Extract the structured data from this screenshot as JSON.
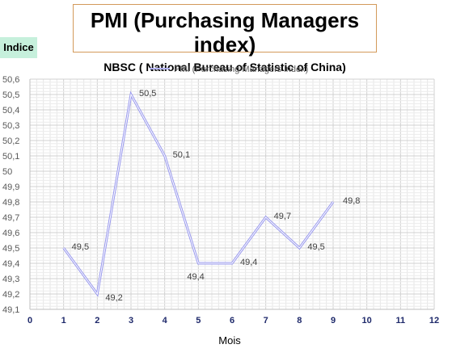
{
  "chart_data": {
    "type": "line",
    "title": "PMI (Purchasing Managers index)",
    "subtitle": "NBSC ( National Bureau of Statistic of China)",
    "ylabel": "Indice",
    "xlabel": "Mois",
    "xlim": [
      0,
      12
    ],
    "ylim": [
      49.1,
      50.6
    ],
    "x_ticks": [
      "0",
      "1",
      "2",
      "3",
      "4",
      "5",
      "6",
      "7",
      "8",
      "9",
      "10",
      "11",
      "12"
    ],
    "y_ticks": [
      "49,1",
      "49,2",
      "49,3",
      "49,4",
      "49,5",
      "49,6",
      "49,7",
      "49,8",
      "49,9",
      "50",
      "50,1",
      "50,2",
      "50,3",
      "50,4",
      "50,5",
      "50,6"
    ],
    "grid": true,
    "legend_position": "top",
    "series": [
      {
        "name": "PMI (Purchasing Managers index)",
        "color": "#9999ee",
        "x": [
          1,
          2,
          3,
          4,
          5,
          6,
          7,
          8,
          9
        ],
        "y": [
          49.5,
          49.2,
          50.5,
          50.1,
          49.4,
          49.4,
          49.7,
          49.5,
          49.8
        ],
        "labels": [
          "49,5",
          "49,2",
          "50,5",
          "50,1",
          "49,4",
          "49,4",
          "49,7",
          "49,5",
          "49,8"
        ]
      }
    ]
  }
}
